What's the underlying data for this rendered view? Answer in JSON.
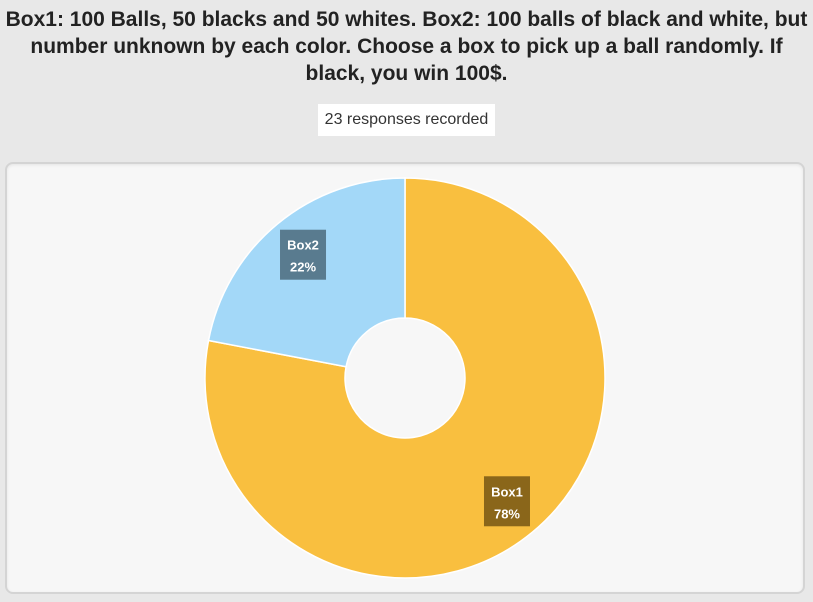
{
  "title": "Box1: 100 Balls, 50 blacks and 50 whites. Box2: 100 balls of black and white, but number unknown by each color. Choose a box to pick up a ball randomly. If black, you win 100$.",
  "responses_text": "23 responses recorded",
  "chart_data": {
    "type": "pie",
    "title": "Box1: 100 Balls, 50 blacks and 50 whites. Box2: 100 balls of black and white, but number unknown by each color. Choose a box to pick up a ball randomly. If black, you win 100$.",
    "categories": [
      "Box1",
      "Box2"
    ],
    "values": [
      78,
      22
    ],
    "value_labels": [
      "78%",
      "22%"
    ],
    "colors": [
      "#f9bf3f",
      "#a3d8f8"
    ],
    "label_colors": [
      "#7a5a16",
      "#4f6d80"
    ],
    "donut": true,
    "legend": "none"
  }
}
